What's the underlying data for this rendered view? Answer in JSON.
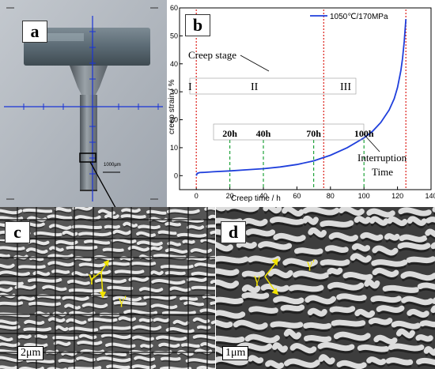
{
  "panels": {
    "a": {
      "label": "a",
      "scale_text": "1000μm"
    },
    "b": {
      "label": "b"
    },
    "c": {
      "label": "c",
      "scale_text": "2μm",
      "phase_label_1": "γ",
      "phase_label_2": "γ'"
    },
    "d": {
      "label": "d",
      "scale_text": "1μm",
      "phase_label_1": "γ",
      "phase_label_2": "γ'"
    }
  },
  "chart_data": {
    "type": "line",
    "xlabel": "Creep time / h",
    "ylabel": "creep strain / %",
    "xlim": [
      -10,
      140
    ],
    "ylim": [
      -5,
      60
    ],
    "x_ticks": [
      0,
      20,
      40,
      60,
      80,
      100,
      120,
      140
    ],
    "y_ticks": [
      0,
      10,
      20,
      30,
      40,
      50,
      60
    ],
    "legend": {
      "entry": "1050℃/170MPa",
      "position": "top-right"
    },
    "series": [
      {
        "name": "1050℃/170MPa",
        "color": "#1f3fdc",
        "x": [
          0,
          0.5,
          2,
          5,
          10,
          20,
          30,
          40,
          50,
          60,
          70,
          75,
          80,
          90,
          100,
          105,
          110,
          115,
          118,
          120,
          122,
          123,
          124,
          125
        ],
        "y": [
          0,
          0.8,
          1.1,
          1.2,
          1.4,
          1.7,
          2.1,
          2.5,
          3.1,
          4.0,
          5.3,
          6.3,
          7.3,
          10.0,
          13.5,
          15.8,
          19.0,
          23.5,
          27.5,
          31.5,
          37.5,
          42.0,
          48.0,
          56.0
        ]
      }
    ],
    "red_lines_x": [
      0,
      76,
      125
    ],
    "green_lines": [
      {
        "x": 20,
        "label": "20h"
      },
      {
        "x": 40,
        "label": "40h"
      },
      {
        "x": 70,
        "label": "70h"
      },
      {
        "x": 100,
        "label": "100h"
      }
    ],
    "annotations": {
      "creep_stage": "Creep stage",
      "stage_1": "I",
      "stage_2": "II",
      "stage_3": "III",
      "interruption": "Interruption",
      "interruption_time": "Time"
    }
  }
}
